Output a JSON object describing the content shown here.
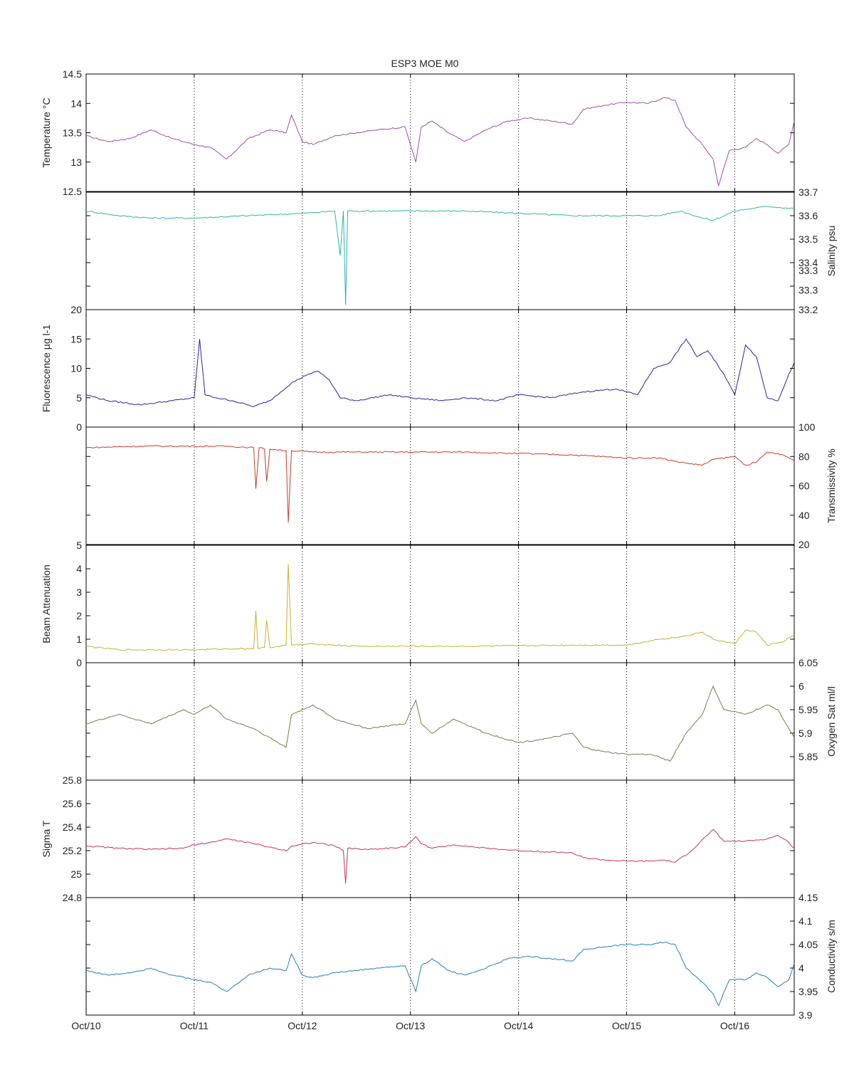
{
  "title": "ESP3 MOE   M0",
  "x_tick_labels": [
    "Oct/10",
    "Oct/11",
    "Oct/12",
    "Oct/13",
    "Oct/14",
    "Oct/15",
    "Oct/16"
  ],
  "chart_data": [
    {
      "type": "line",
      "name": "temperature",
      "ylabel": "Temperature °C",
      "side": "left",
      "ylim": [
        12.5,
        14.5
      ],
      "yticks": [
        "12.5",
        "13",
        "13.5",
        "14",
        "14.5"
      ],
      "color": "#a64ca6",
      "x_range_days": [
        0,
        6.55
      ],
      "x": [
        0,
        0.2,
        0.4,
        0.6,
        0.8,
        1.0,
        1.15,
        1.3,
        1.5,
        1.7,
        1.85,
        1.9,
        2.0,
        2.1,
        2.3,
        2.5,
        2.7,
        2.95,
        3.05,
        3.1,
        3.2,
        3.35,
        3.5,
        3.7,
        3.9,
        4.1,
        4.3,
        4.5,
        4.6,
        4.8,
        5.0,
        5.2,
        5.35,
        5.45,
        5.55,
        5.7,
        5.8,
        5.85,
        5.95,
        6.1,
        6.2,
        6.3,
        6.4,
        6.5,
        6.55
      ],
      "y": [
        13.45,
        13.35,
        13.4,
        13.55,
        13.4,
        13.3,
        13.25,
        13.05,
        13.4,
        13.55,
        13.5,
        13.8,
        13.35,
        13.3,
        13.45,
        13.5,
        13.55,
        13.6,
        13.0,
        13.6,
        13.7,
        13.5,
        13.35,
        13.55,
        13.7,
        13.75,
        13.7,
        13.65,
        13.9,
        13.97,
        14.02,
        14.0,
        14.1,
        14.05,
        13.6,
        13.3,
        13.05,
        12.6,
        13.2,
        13.25,
        13.4,
        13.3,
        13.15,
        13.3,
        13.7
      ]
    },
    {
      "type": "line",
      "name": "salinity",
      "ylabel": "Salinity psu",
      "side": "right",
      "ylim": [
        33.2,
        33.7
      ],
      "yticks": [
        "33.2",
        "33.3",
        "33.3",
        "33.4",
        "33.5",
        "33.6",
        "33.7"
      ],
      "color": "#2fb3b3",
      "x_range_days": [
        0,
        6.55
      ],
      "x": [
        0,
        0.3,
        0.6,
        1.0,
        1.5,
        2.0,
        2.3,
        2.35,
        2.38,
        2.4,
        2.42,
        2.5,
        3.0,
        3.5,
        4.0,
        4.5,
        5.0,
        5.3,
        5.5,
        5.7,
        5.8,
        6.0,
        6.3,
        6.55
      ],
      "y": [
        33.62,
        33.6,
        33.59,
        33.59,
        33.6,
        33.61,
        33.62,
        33.43,
        33.62,
        33.22,
        33.62,
        33.62,
        33.62,
        33.62,
        33.61,
        33.6,
        33.6,
        33.6,
        33.62,
        33.59,
        33.58,
        33.62,
        33.64,
        33.63
      ]
    },
    {
      "type": "line",
      "name": "fluorescence",
      "ylabel": "Fluorescence µg l-1",
      "side": "left",
      "ylim": [
        0,
        20
      ],
      "yticks": [
        "0",
        "5",
        "10",
        "15",
        "20"
      ],
      "color": "#2a1fb0",
      "x_range_days": [
        0,
        6.55
      ],
      "x": [
        0,
        0.2,
        0.5,
        0.8,
        1.0,
        1.05,
        1.1,
        1.2,
        1.35,
        1.55,
        1.7,
        1.9,
        2.05,
        2.15,
        2.25,
        2.35,
        2.5,
        2.8,
        3.0,
        3.3,
        3.5,
        3.8,
        4.0,
        4.3,
        4.6,
        4.9,
        5.1,
        5.25,
        5.4,
        5.55,
        5.65,
        5.75,
        5.9,
        6.0,
        6.1,
        6.2,
        6.3,
        6.4,
        6.5,
        6.55
      ],
      "y": [
        5.5,
        4.5,
        3.8,
        4.5,
        5.0,
        15.0,
        5.5,
        5.0,
        4.5,
        3.5,
        4.5,
        7.5,
        9.0,
        9.5,
        8.0,
        5.0,
        4.5,
        5.5,
        5.0,
        4.5,
        5.0,
        4.5,
        5.5,
        5.0,
        6.0,
        6.5,
        5.5,
        10.0,
        11.0,
        15.0,
        12.0,
        13.0,
        9.0,
        5.5,
        14.0,
        12.0,
        5.0,
        4.5,
        9.0,
        11.0
      ]
    },
    {
      "type": "line",
      "name": "transmissivity",
      "ylabel": "Transmissivity %",
      "side": "right",
      "ylim": [
        20,
        100
      ],
      "yticks": [
        "20",
        "40",
        "60",
        "80",
        "100"
      ],
      "color": "#d03a22",
      "x_range_days": [
        0,
        6.55
      ],
      "x": [
        0,
        0.5,
        1.0,
        1.3,
        1.55,
        1.57,
        1.6,
        1.65,
        1.67,
        1.7,
        1.85,
        1.87,
        1.9,
        2.1,
        2.5,
        3.0,
        3.5,
        4.0,
        4.5,
        5.0,
        5.3,
        5.5,
        5.7,
        5.8,
        6.0,
        6.1,
        6.2,
        6.3,
        6.45,
        6.55
      ],
      "y": [
        86,
        87,
        87,
        87,
        86,
        58,
        86,
        85,
        63,
        85,
        84,
        35,
        84,
        83,
        83,
        83,
        83,
        82,
        81,
        79,
        79,
        76,
        74,
        78,
        80,
        74,
        76,
        83,
        81,
        77
      ]
    },
    {
      "type": "line",
      "name": "beam_attenuation",
      "ylabel": "Beam Attenuation",
      "side": "left",
      "ylim": [
        0,
        5
      ],
      "yticks": [
        "0",
        "1",
        "2",
        "3",
        "4",
        "5"
      ],
      "color": "#c8b033",
      "x_range_days": [
        0,
        6.55
      ],
      "x": [
        0,
        0.3,
        0.6,
        1.0,
        1.4,
        1.55,
        1.57,
        1.59,
        1.65,
        1.67,
        1.7,
        1.85,
        1.87,
        1.9,
        2.1,
        2.5,
        3.0,
        3.5,
        4.0,
        4.5,
        5.0,
        5.3,
        5.5,
        5.7,
        5.8,
        6.0,
        6.1,
        6.2,
        6.3,
        6.45,
        6.55
      ],
      "y": [
        0.7,
        0.55,
        0.55,
        0.55,
        0.6,
        0.6,
        2.2,
        0.6,
        0.65,
        1.8,
        0.65,
        0.75,
        4.2,
        0.75,
        0.8,
        0.7,
        0.7,
        0.7,
        0.72,
        0.75,
        0.75,
        1.0,
        1.1,
        1.3,
        1.0,
        0.8,
        1.4,
        1.3,
        0.75,
        0.9,
        1.2
      ]
    },
    {
      "type": "line",
      "name": "oxygen_sat",
      "ylabel": "Oxygen Sat ml/l",
      "side": "right",
      "ylim": [
        5.8,
        6.05
      ],
      "yticks": [
        "5.85",
        "5.9",
        "5.95",
        "6",
        "6.05"
      ],
      "color": "#7d7a44",
      "x_range_days": [
        0,
        6.55
      ],
      "x": [
        0,
        0.3,
        0.6,
        0.9,
        1.0,
        1.15,
        1.3,
        1.55,
        1.85,
        1.9,
        2.1,
        2.3,
        2.6,
        2.95,
        3.05,
        3.1,
        3.2,
        3.4,
        3.7,
        4.0,
        4.3,
        4.5,
        4.6,
        4.8,
        5.0,
        5.2,
        5.3,
        5.4,
        5.55,
        5.7,
        5.8,
        5.9,
        6.1,
        6.3,
        6.4,
        6.5,
        6.55
      ],
      "y": [
        5.92,
        5.94,
        5.92,
        5.95,
        5.94,
        5.96,
        5.93,
        5.91,
        5.87,
        5.94,
        5.96,
        5.93,
        5.91,
        5.92,
        5.97,
        5.92,
        5.9,
        5.93,
        5.9,
        5.88,
        5.89,
        5.9,
        5.87,
        5.86,
        5.855,
        5.855,
        5.85,
        5.84,
        5.9,
        5.94,
        6.0,
        5.95,
        5.94,
        5.96,
        5.95,
        5.91,
        5.89
      ]
    },
    {
      "type": "line",
      "name": "sigma_t",
      "ylabel": "Sigma T",
      "side": "left",
      "ylim": [
        24.8,
        25.8
      ],
      "yticks": [
        "24.8",
        "25",
        "25.2",
        "25.4",
        "25.6",
        "25.8"
      ],
      "color": "#cc3355",
      "x_range_days": [
        0,
        6.55
      ],
      "x": [
        0,
        0.3,
        0.6,
        0.9,
        1.0,
        1.15,
        1.3,
        1.55,
        1.85,
        1.9,
        2.1,
        2.3,
        2.38,
        2.4,
        2.42,
        2.6,
        2.95,
        3.05,
        3.1,
        3.2,
        3.4,
        3.7,
        4.0,
        4.3,
        4.5,
        4.6,
        4.8,
        5.0,
        5.2,
        5.35,
        5.45,
        5.6,
        5.8,
        5.9,
        6.1,
        6.3,
        6.4,
        6.5,
        6.55
      ],
      "y": [
        25.24,
        25.22,
        25.21,
        25.22,
        25.25,
        25.27,
        25.3,
        25.26,
        25.2,
        25.24,
        25.27,
        25.24,
        25.2,
        24.92,
        25.22,
        25.21,
        25.23,
        25.32,
        25.26,
        25.22,
        25.25,
        25.22,
        25.2,
        25.19,
        25.18,
        25.14,
        25.12,
        25.11,
        25.11,
        25.12,
        25.1,
        25.2,
        25.38,
        25.28,
        25.28,
        25.3,
        25.33,
        25.27,
        25.22
      ]
    },
    {
      "type": "line",
      "name": "conductivity",
      "ylabel": "Conductivity s/m",
      "side": "right",
      "ylim": [
        3.9,
        4.15
      ],
      "yticks": [
        "3.9",
        "3.95",
        "4",
        "4.05",
        "4.1",
        "4.15"
      ],
      "color": "#1f7ec8",
      "x_range_days": [
        0,
        6.55
      ],
      "x": [
        0,
        0.2,
        0.4,
        0.6,
        0.8,
        1.0,
        1.15,
        1.3,
        1.5,
        1.7,
        1.85,
        1.9,
        2.0,
        2.1,
        2.3,
        2.5,
        2.7,
        2.95,
        3.05,
        3.1,
        3.2,
        3.35,
        3.5,
        3.7,
        3.9,
        4.1,
        4.3,
        4.5,
        4.6,
        4.8,
        5.0,
        5.2,
        5.35,
        5.45,
        5.55,
        5.7,
        5.8,
        5.85,
        5.95,
        6.1,
        6.2,
        6.3,
        6.4,
        6.5,
        6.55
      ],
      "y": [
        3.995,
        3.985,
        3.99,
        4.0,
        3.985,
        3.975,
        3.97,
        3.95,
        3.985,
        4.0,
        3.995,
        4.03,
        3.985,
        3.98,
        3.99,
        3.995,
        4.0,
        4.005,
        3.95,
        4.005,
        4.02,
        3.995,
        3.985,
        4.0,
        4.02,
        4.025,
        4.02,
        4.015,
        4.04,
        4.045,
        4.05,
        4.05,
        4.055,
        4.05,
        4.0,
        3.97,
        3.945,
        3.92,
        3.975,
        3.975,
        3.99,
        3.98,
        3.96,
        3.975,
        4.01
      ]
    }
  ]
}
